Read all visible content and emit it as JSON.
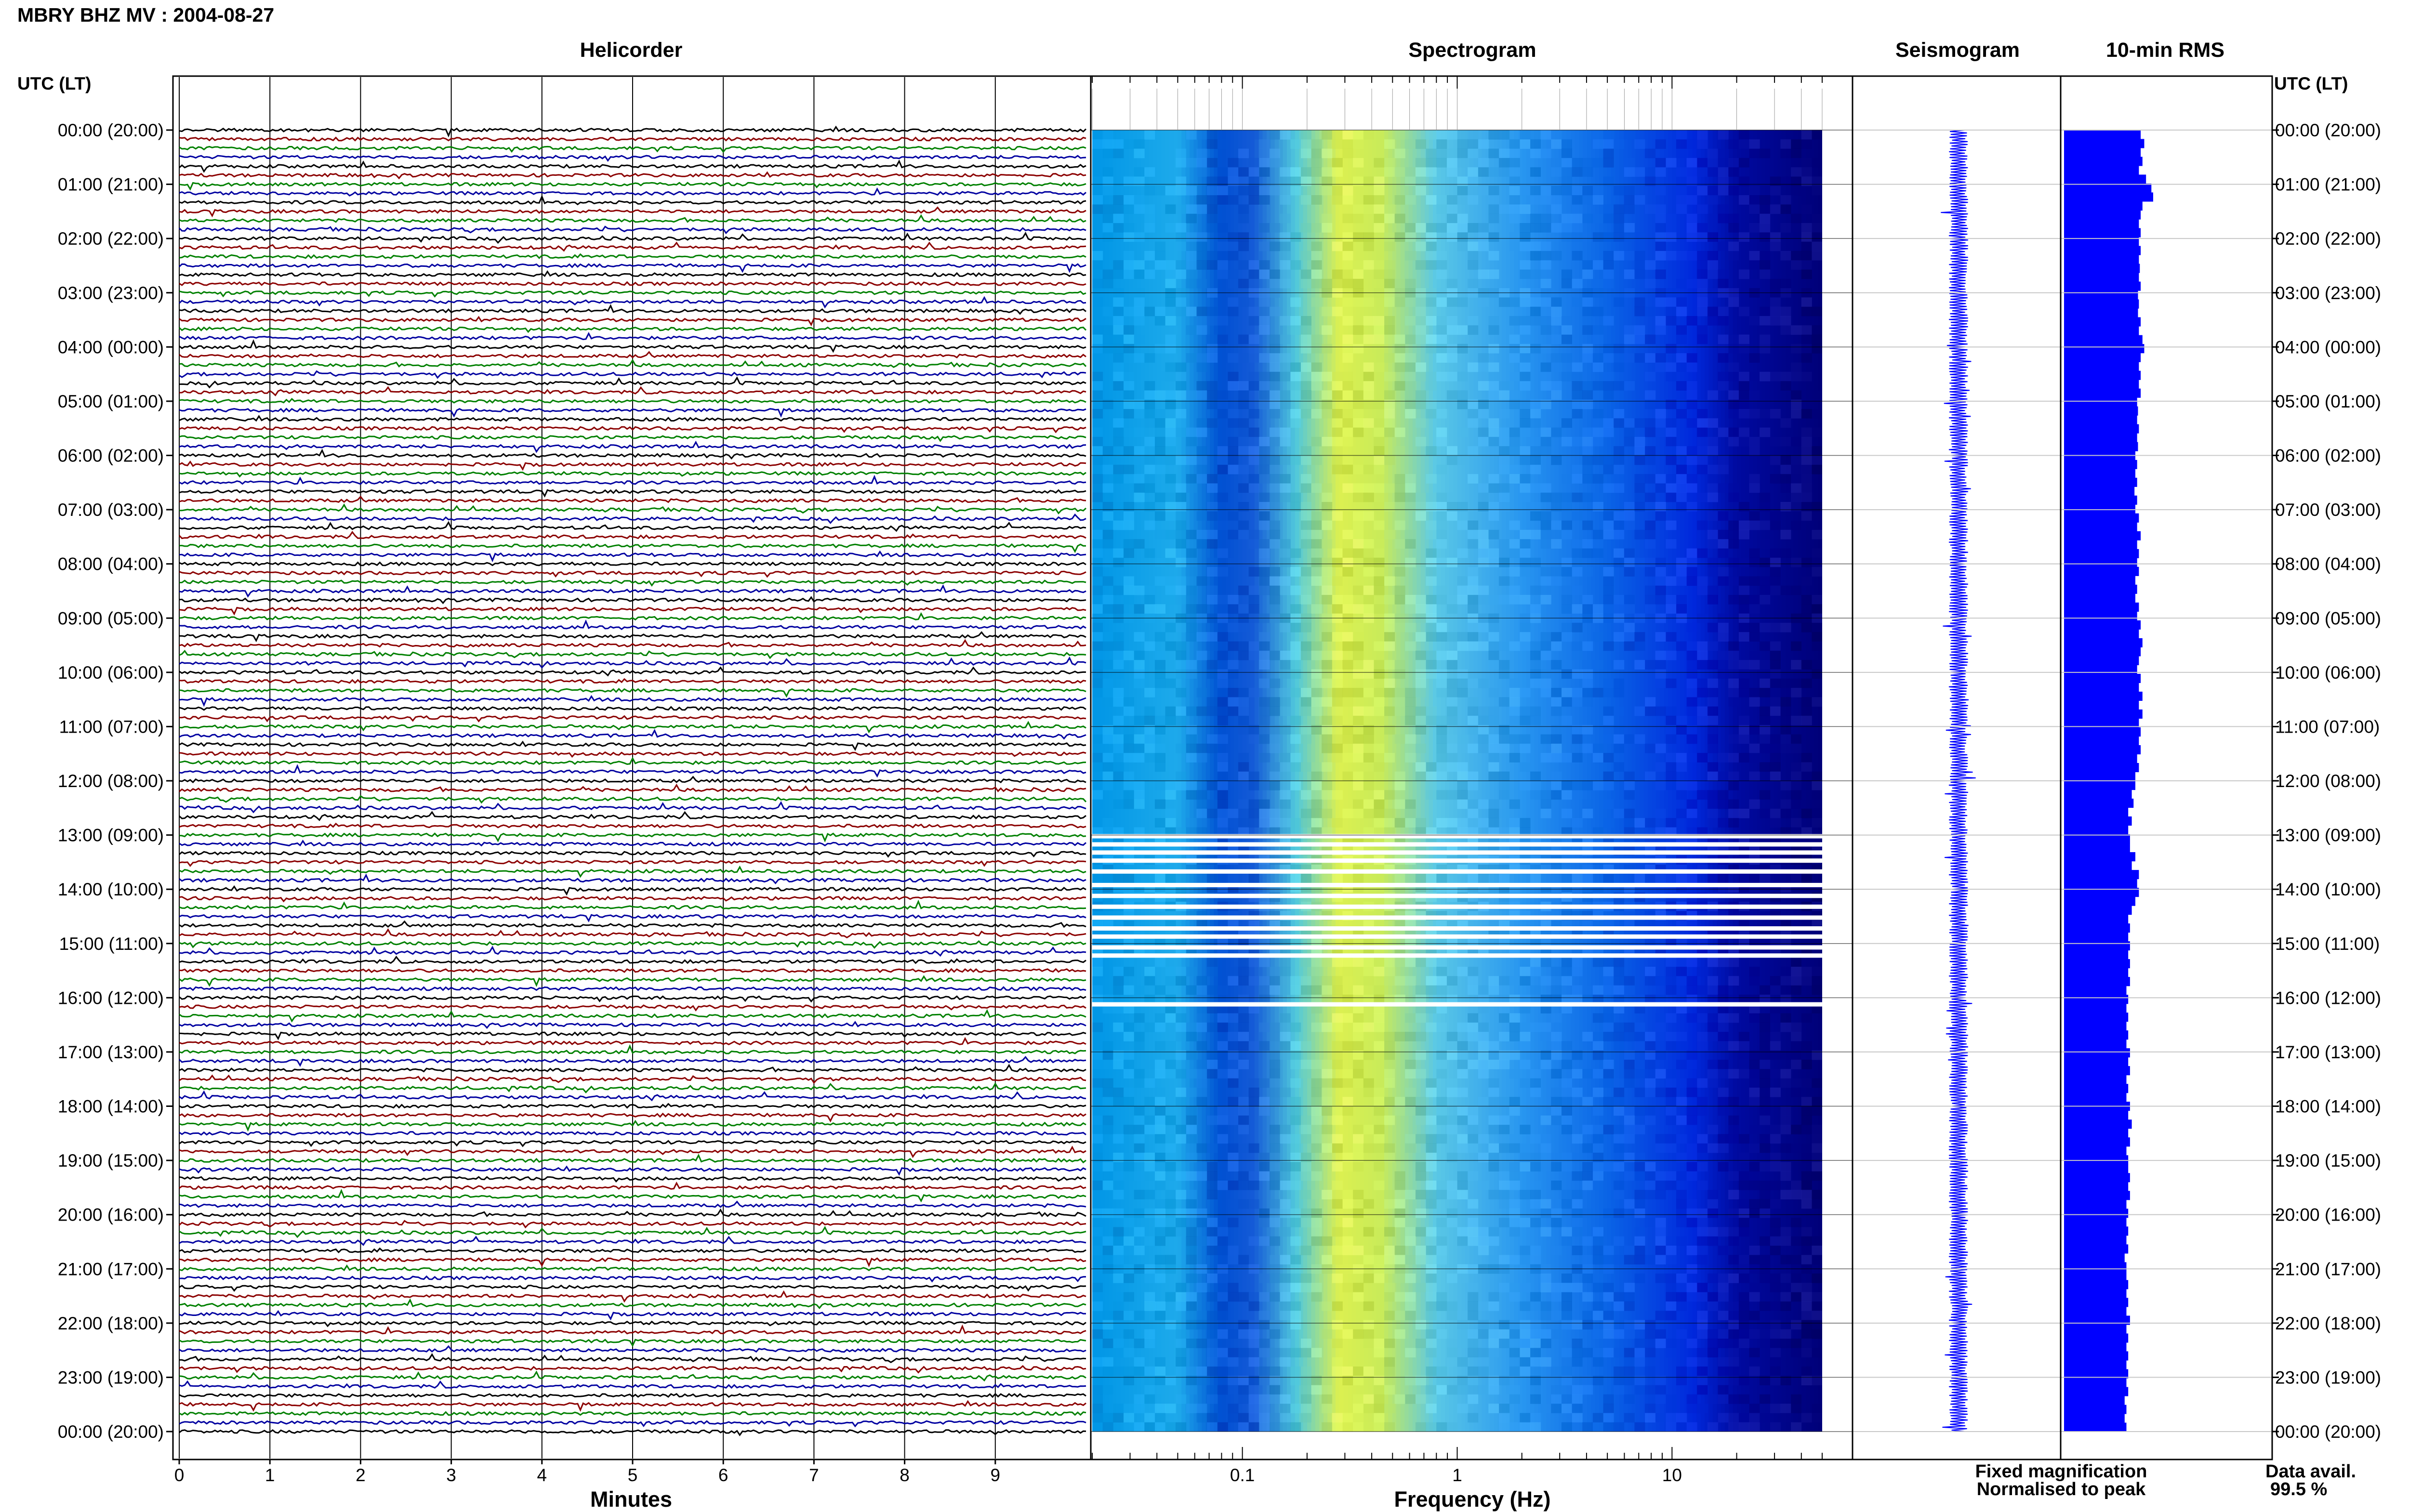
{
  "chart_data": {
    "type": "helicorder-spectrogram",
    "title": "MBRY BHZ MV : 2004-08-27",
    "row_time_labels": [
      "00:00 (20:00)",
      "01:00 (21:00)",
      "02:00 (22:00)",
      "03:00 (23:00)",
      "04:00 (00:00)",
      "05:00 (01:00)",
      "06:00 (02:00)",
      "07:00 (03:00)",
      "08:00 (04:00)",
      "09:00 (05:00)",
      "10:00 (06:00)",
      "11:00 (07:00)",
      "12:00 (08:00)",
      "13:00 (09:00)",
      "14:00 (10:00)",
      "15:00 (11:00)",
      "16:00 (12:00)",
      "17:00 (13:00)",
      "18:00 (14:00)",
      "19:00 (15:00)",
      "20:00 (16:00)",
      "21:00 (17:00)",
      "22:00 (18:00)",
      "23:00 (19:00)",
      "00:00 (20:00)"
    ],
    "helicorder": {
      "title": "Helicorder",
      "yaxis_label": "UTC (LT)",
      "xlabel": "Minutes",
      "xticks": [
        "0",
        "1",
        "2",
        "3",
        "4",
        "5",
        "6",
        "7",
        "8",
        "9"
      ],
      "xlim": [
        0,
        10
      ],
      "traces_per_hour": 6,
      "trace_colors": [
        "#000000",
        "#8b0000",
        "#008000",
        "#0000a0"
      ]
    },
    "spectrogram": {
      "title": "Spectrogram",
      "xlabel": "Frequency (Hz)",
      "xscale": "log",
      "xlim": [
        0.02,
        50
      ],
      "xticks": [
        "0.1",
        "1",
        "10"
      ],
      "gaps_utc_hours": [
        13.0,
        13.15,
        13.3,
        13.45,
        13.65,
        13.9,
        14.1,
        14.3,
        14.5,
        14.7,
        14.85,
        15.05,
        15.2,
        16.1
      ]
    },
    "seismogram": {
      "title": "Seismogram"
    },
    "rms": {
      "title": "10-min RMS",
      "values": [
        0.86,
        0.9,
        0.86,
        0.88,
        0.84,
        0.92,
        0.98,
        1.0,
        0.88,
        0.86,
        0.84,
        0.86,
        0.84,
        0.86,
        0.84,
        0.85,
        0.84,
        0.86,
        0.83,
        0.84,
        0.83,
        0.86,
        0.84,
        0.88,
        0.9,
        0.86,
        0.84,
        0.86,
        0.84,
        0.86,
        0.82,
        0.83,
        0.82,
        0.84,
        0.82,
        0.83,
        0.8,
        0.82,
        0.8,
        0.82,
        0.79,
        0.82,
        0.8,
        0.84,
        0.82,
        0.86,
        0.82,
        0.84,
        0.82,
        0.84,
        0.8,
        0.82,
        0.8,
        0.84,
        0.82,
        0.86,
        0.84,
        0.88,
        0.86,
        0.84,
        0.82,
        0.86,
        0.84,
        0.88,
        0.84,
        0.88,
        0.84,
        0.86,
        0.84,
        0.86,
        0.82,
        0.84,
        0.8,
        0.8,
        0.76,
        0.78,
        0.72,
        0.76,
        0.72,
        0.74,
        0.74,
        0.8,
        0.76,
        0.84,
        0.82,
        0.84,
        0.8,
        0.76,
        0.72,
        0.74,
        0.72,
        0.74,
        0.72,
        0.74,
        0.72,
        0.74,
        0.7,
        0.72,
        0.7,
        0.72,
        0.7,
        0.72,
        0.7,
        0.74,
        0.72,
        0.74,
        0.7,
        0.72,
        0.7,
        0.74,
        0.72,
        0.76,
        0.72,
        0.74,
        0.7,
        0.72,
        0.72,
        0.74,
        0.72,
        0.74,
        0.7,
        0.72,
        0.7,
        0.72,
        0.7,
        0.72,
        0.68,
        0.7,
        0.7,
        0.72,
        0.7,
        0.72,
        0.7,
        0.74,
        0.7,
        0.72,
        0.7,
        0.72,
        0.7,
        0.72,
        0.7,
        0.72,
        0.68,
        0.7,
        0.68,
        0.7
      ]
    },
    "legend": {
      "fixed_label": "Fixed magnification",
      "fixed_color": "#0000ff",
      "normalised_label": "Normalised to peak",
      "normalised_color": "#ff0000"
    },
    "data_availability": {
      "label": "Data avail.",
      "value": "99.5 %"
    }
  }
}
